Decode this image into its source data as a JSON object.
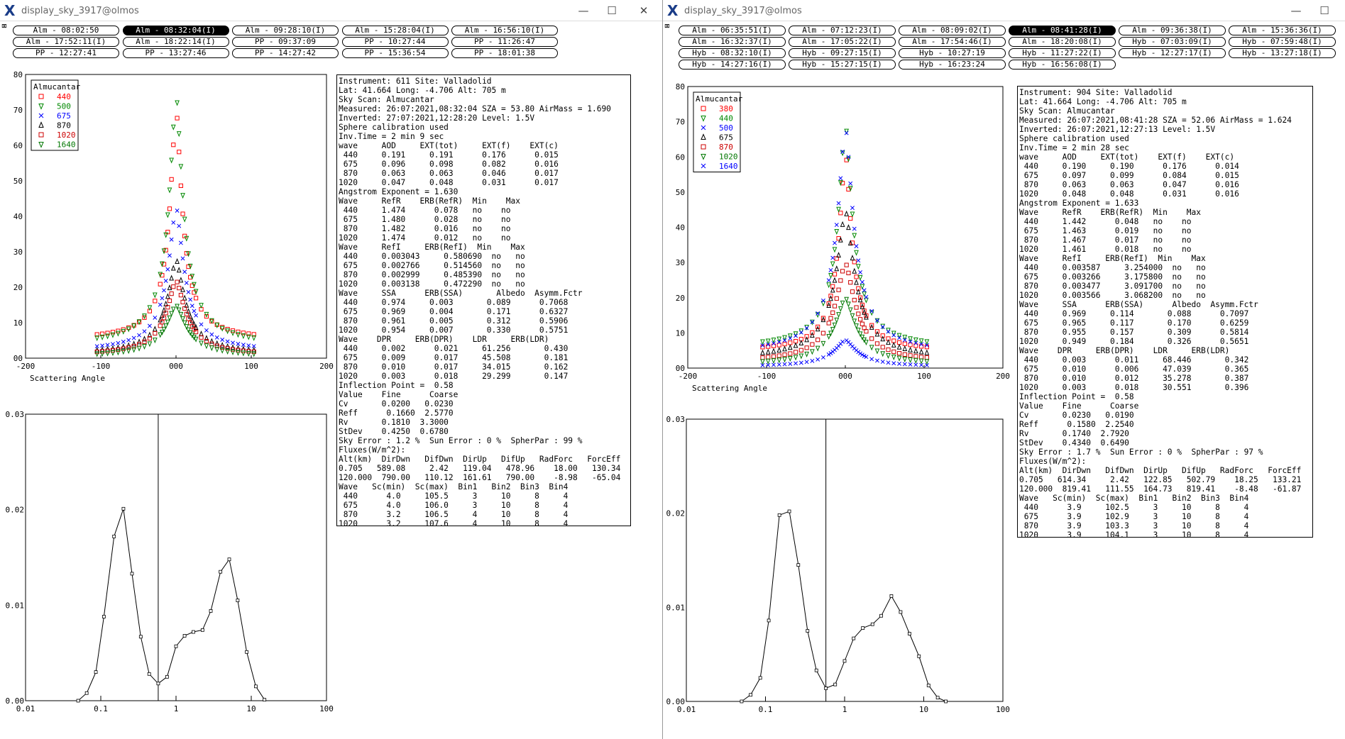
{
  "windows": [
    {
      "title": "display_sky_3917@olmos",
      "buttons": [
        [
          "Alm - 08:02:50",
          "Alm - 08:32:04(I)",
          "Alm - 09:28:10(I)",
          "Alm - 15:28:04(I)",
          "Alm - 16:56:10(I)"
        ],
        [
          "Alm - 17:52:11(I)",
          "Alm - 18:22:14(I)",
          "PP - 09:37:09",
          "PP - 10:27:44",
          "PP - 11:26:47"
        ],
        [
          "PP - 12:27:41",
          "PP - 13:27:46",
          "PP - 14:27:42",
          "PP - 15:36:54",
          "PP - 18:01:38"
        ]
      ],
      "selected_button": "Alm - 08:32:04(I)",
      "info_lines": [
        "Instrument: 611 Site: Valladolid",
        "Lat: 41.664 Long: -4.706 Alt: 705 m",
        "Sky Scan: Almucantar",
        "Measured: 26:07:2021,08:32:04 SZA = 53.80 AirMass = 1.690",
        "Inverted: 27:07:2021,12:28:20 Level: 1.5V",
        "Sphere calibration used",
        "Inv.Time = 2 min 9 sec",
        "wave     AOD     EXT(tot)     EXT(f)    EXT(c)",
        " 440     0.191     0.191      0.176      0.015",
        " 675     0.096     0.098      0.082      0.016",
        " 870     0.063     0.063      0.046      0.017",
        "1020     0.047     0.048      0.031      0.017",
        "Angstrom Exponent = 1.630",
        "Wave     RefR    ERB(RefR)  Min    Max",
        " 440     1.474      0.078   no    no",
        " 675     1.480      0.028   no    no",
        " 870     1.482      0.016   no    no",
        "1020     1.474      0.012   no    no",
        "Wave     RefI     ERB(RefI)  Min    Max",
        " 440     0.003043     0.580690  no   no",
        " 675     0.002766     0.514560  no   no",
        " 870     0.002999     0.485390  no   no",
        "1020     0.003138     0.472290  no   no",
        "Wave     SSA      ERB(SSA)       Albedo  Asymm.Fctr",
        " 440     0.974     0.003       0.089      0.7068",
        " 675     0.969     0.004       0.171      0.6327",
        " 870     0.961     0.005       0.312      0.5906",
        "1020     0.954     0.007       0.330      0.5751",
        "Wave    DPR     ERB(DPR)    LDR     ERB(LDR)",
        " 440     0.002      0.021     61.256       0.430",
        " 675     0.009      0.017     45.508       0.181",
        " 870     0.010      0.017     34.015       0.162",
        "1020     0.003      0.018     29.299       0.147",
        "Inflection Point =  0.58",
        "Value    Fine      Coarse",
        "Cv       0.0200   0.0230",
        "Reff      0.1660  2.5770",
        "Rv       0.1810  3.3000",
        "StDev    0.4250  0.6780",
        "Sky Error : 1.2 %  Sun Error : 0 %  SpherPar : 99 %",
        "Fluxes(W/m^2):",
        "Alt(km)  DirDwn   DifDwn  DirUp   DifUp   RadForc   ForcEff",
        "0.705   589.08     2.42   119.04   478.96    18.00   130.34",
        "120.000  790.00   110.12  161.61   790.00    -8.98   -65.04",
        "Wave   Sc(min)  Sc(max)  Bin1   Bin2  Bin3  Bin4",
        " 440      4.0     105.5     3     10     8     4",
        " 675      4.0     106.0     3     10     8     4",
        " 870      3.2     106.5     4     10     8     4",
        "1020      3.2     107.6     4     10     8     4"
      ],
      "legend_title": "Almucantar",
      "legend": [
        {
          "label": "440",
          "color": "#ff0000",
          "marker": "square"
        },
        {
          "label": "500",
          "color": "#008800",
          "marker": "tri-down"
        },
        {
          "label": "675",
          "color": "#0000ff",
          "marker": "x"
        },
        {
          "label": "870",
          "color": "#000000",
          "marker": "tri-up"
        },
        {
          "label": "1020",
          "color": "#cc0000",
          "marker": "square"
        },
        {
          "label": "1640",
          "color": "#007700",
          "marker": "tri-down"
        }
      ],
      "xlabel": "Scattering Angle"
    },
    {
      "title": "display_sky_3917@olmos",
      "buttons": [
        [
          "Alm - 06:35:51(I)",
          "Alm - 07:12:23(I)",
          "Alm - 08:09:02(I)",
          "Alm - 08:41:28(I)",
          "Alm - 09:36:38(I)",
          "Alm - 15:36:36(I)"
        ],
        [
          "Alm - 16:32:37(I)",
          "Alm - 17:05:22(I)",
          "Alm - 17:54:46(I)",
          "Alm - 18:20:08(I)",
          "Hyb - 07:03:09(I)",
          "Hyb - 07:59:48(I)"
        ],
        [
          "Hyb - 08:32:10(I)",
          "Hyb - 09:27:15(I)",
          "Hyb - 10:27:19",
          "Hyb - 11:27:22(I)",
          "Hyb - 12:27:17(I)",
          "Hyb - 13:27:18(I)"
        ],
        [
          "Hyb - 14:27:16(I)",
          "Hyb - 15:27:15(I)",
          "Hyb - 16:23:24",
          "Hyb - 16:56:08(I)"
        ]
      ],
      "selected_button": "Alm - 08:41:28(I)",
      "info_lines": [
        "Instrument: 904 Site: Valladolid",
        "Lat: 41.664 Long: -4.706 Alt: 705 m",
        "Sky Scan: Almucantar",
        "Measured: 26:07:2021,08:41:28 SZA = 52.06 AirMass = 1.624",
        "Inverted: 26:07:2021,12:27:13 Level: 1.5V",
        "Sphere calibration used",
        "Inv.Time = 2 min 28 sec",
        "wave     AOD     EXT(tot)    EXT(f)    EXT(c)",
        " 440     0.190     0.190      0.176      0.014",
        " 675     0.097     0.099      0.084      0.015",
        " 870     0.063     0.063      0.047      0.016",
        "1020     0.048     0.048      0.031      0.016",
        "Angstrom Exponent = 1.633",
        "Wave     RefR    ERB(RefR)  Min    Max",
        " 440     1.442      0.048   no    no",
        " 675     1.463      0.019   no    no",
        " 870     1.467      0.017   no    no",
        "1020     1.461      0.018   no    no",
        "Wave     RefI     ERB(RefI)  Min    Max",
        " 440     0.003587     3.254000  no   no",
        " 675     0.003266     3.175800  no   no",
        " 870     0.003477     3.091700  no   no",
        "1020     0.003566     3.068200  no   no",
        "Wave     SSA      ERB(SSA)      Albedo  Asymm.Fctr",
        " 440     0.969     0.114       0.088      0.7097",
        " 675     0.965     0.117       0.170      0.6259",
        " 870     0.955     0.157       0.309      0.5814",
        "1020     0.949     0.184       0.326      0.5651",
        "Wave    DPR     ERB(DPR)    LDR     ERB(LDR)",
        " 440     0.003      0.011     68.446       0.342",
        " 675     0.010      0.006     47.039       0.365",
        " 870     0.010      0.012     35.278       0.387",
        "1020     0.003      0.018     30.551       0.396",
        "Inflection Point =  0.58",
        "Value    Fine      Coarse",
        "Cv       0.0230   0.0190",
        "Reff      0.1580  2.2540",
        "Rv       0.1740  2.7920",
        "StDev    0.4340  0.6490",
        "Sky Error : 1.7 %  Sun Error : 0 %  SpherPar : 97 %",
        "Fluxes(W/m^2):",
        "Alt(km)  DirDwn   DifDwn  DirUp   DifUp   RadForc   ForcEff",
        "0.705   614.34     2.42   122.85   502.79    18.25   133.21",
        "120.000  819.41   111.55  164.73   819.41    -8.48   -61.87",
        "Wave   Sc(min)  Sc(max)  Bin1   Bin2  Bin3  Bin4",
        " 440      3.9     102.5     3     10     8     4",
        " 675      3.9     102.9     3     10     8     4",
        " 870      3.9     103.3     3     10     8     4",
        "1020      3.9     104.1     3     10     8     4"
      ],
      "legend_title": "Almucantar",
      "legend": [
        {
          "label": "380",
          "color": "#ff0000",
          "marker": "square"
        },
        {
          "label": "440",
          "color": "#008800",
          "marker": "tri-down"
        },
        {
          "label": "500",
          "color": "#0000ff",
          "marker": "x"
        },
        {
          "label": "675",
          "color": "#000000",
          "marker": "tri-up"
        },
        {
          "label": "870",
          "color": "#cc0000",
          "marker": "square"
        },
        {
          "label": "1020",
          "color": "#007700",
          "marker": "tri-down"
        },
        {
          "label": "1640",
          "color": "#0000ff",
          "marker": "x"
        }
      ],
      "xlabel": "Scattering Angle"
    }
  ],
  "chart_data": [
    {
      "type": "scatter",
      "window": 1,
      "title": "",
      "xlabel": "Scattering Angle",
      "ylabel": "",
      "xlim": [
        -200,
        200
      ],
      "ylim": [
        0,
        80
      ],
      "xticks": [
        "-200",
        "-100",
        "000",
        "100",
        "200"
      ],
      "yticks": [
        "00",
        "10",
        "20",
        "30",
        "40",
        "50",
        "60",
        "70",
        "80"
      ],
      "series": [
        {
          "name": "440",
          "peak": 71,
          "base": 5,
          "x_range": [
            -105,
            105
          ]
        },
        {
          "name": "500",
          "peak": 75,
          "base": 3.5,
          "x_range": [
            -105,
            105
          ]
        },
        {
          "name": "675",
          "peak": 43,
          "base": 1.8,
          "x_range": [
            -105,
            105
          ]
        },
        {
          "name": "870",
          "peak": 28,
          "base": 1,
          "x_range": [
            -105,
            105
          ]
        },
        {
          "name": "1020",
          "peak": 22,
          "base": 0.7,
          "x_range": [
            -105,
            105
          ]
        },
        {
          "name": "1640",
          "peak": 15,
          "base": 0.4,
          "x_range": [
            -105,
            105
          ]
        }
      ]
    },
    {
      "type": "line",
      "window": 1,
      "title": "",
      "xlabel": "",
      "ylabel": "",
      "xscale": "log",
      "xlim": [
        0.01,
        100
      ],
      "ylim": [
        0,
        0.03
      ],
      "xticks": [
        "0.01",
        "0.1",
        "1",
        "10",
        "100"
      ],
      "yticks": [
        "0.00",
        "0.01",
        "0.02",
        "0.03"
      ],
      "vline": 0.58,
      "x": [
        0.05,
        0.065,
        0.086,
        0.11,
        0.15,
        0.2,
        0.26,
        0.34,
        0.44,
        0.58,
        0.76,
        1.0,
        1.3,
        1.7,
        2.25,
        2.9,
        3.9,
        5.1,
        6.6,
        8.7,
        11.5,
        15
      ],
      "y": [
        0.0,
        0.0008,
        0.003,
        0.0088,
        0.0172,
        0.0201,
        0.0133,
        0.0067,
        0.0028,
        0.0018,
        0.0025,
        0.0057,
        0.0068,
        0.0072,
        0.0074,
        0.0094,
        0.0135,
        0.0148,
        0.0105,
        0.0051,
        0.0015,
        0.0001
      ]
    },
    {
      "type": "scatter",
      "window": 2,
      "title": "",
      "xlabel": "Scattering Angle",
      "ylabel": "",
      "xlim": [
        -200,
        200
      ],
      "ylim": [
        0,
        80
      ],
      "xticks": [
        "-200",
        "-100",
        "000",
        "100",
        "200"
      ],
      "yticks": [
        "00",
        "10",
        "20",
        "30",
        "40",
        "50",
        "60",
        "70",
        "80"
      ],
      "series": [
        {
          "name": "380",
          "peak": 62,
          "base": 4.5,
          "x_range": [
            -105,
            105
          ]
        },
        {
          "name": "440",
          "peak": 70,
          "base": 5.5,
          "x_range": [
            -105,
            105
          ]
        },
        {
          "name": "500",
          "peak": 69,
          "base": 4,
          "x_range": [
            -105,
            105
          ]
        },
        {
          "name": "675",
          "peak": 45,
          "base": 2.4,
          "x_range": [
            -105,
            105
          ]
        },
        {
          "name": "870",
          "peak": 30,
          "base": 1.5,
          "x_range": [
            -105,
            105
          ]
        },
        {
          "name": "1020",
          "peak": 20,
          "base": 0.8,
          "x_range": [
            -105,
            105
          ]
        },
        {
          "name": "1640",
          "peak": 8,
          "base": 0.3,
          "x_range": [
            -105,
            105
          ]
        }
      ]
    },
    {
      "type": "line",
      "window": 2,
      "title": "",
      "xlabel": "",
      "ylabel": "",
      "xscale": "log",
      "xlim": [
        0.01,
        100
      ],
      "ylim": [
        0,
        0.03
      ],
      "xticks": [
        "0.01",
        "0.1",
        "1",
        "10",
        "100"
      ],
      "yticks": [
        "0.00",
        "0.01",
        "0.02",
        "0.03"
      ],
      "vline": 0.58,
      "x": [
        0.05,
        0.065,
        0.086,
        0.11,
        0.15,
        0.2,
        0.26,
        0.34,
        0.44,
        0.58,
        0.76,
        1.0,
        1.3,
        1.7,
        2.25,
        2.9,
        3.9,
        5.1,
        6.6,
        8.7,
        11.5,
        15,
        19
      ],
      "y": [
        0.0,
        0.0007,
        0.0025,
        0.0086,
        0.0198,
        0.0202,
        0.0145,
        0.0075,
        0.0033,
        0.0014,
        0.0018,
        0.0043,
        0.0067,
        0.0078,
        0.0082,
        0.0091,
        0.0112,
        0.0095,
        0.0072,
        0.0048,
        0.0017,
        0.0004,
        0.0
      ]
    }
  ]
}
